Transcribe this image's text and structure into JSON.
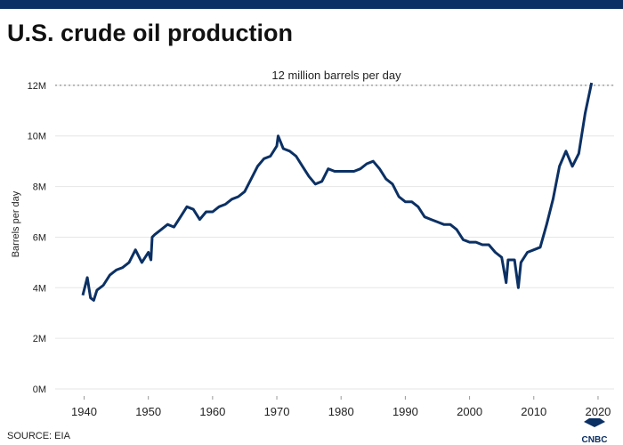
{
  "chart_data": {
    "type": "line",
    "title": "U.S. crude oil production",
    "y_label": "Barrels per day",
    "source": "SOURCE: EIA",
    "logo": "CNBC",
    "reference_line": {
      "value": 12000000,
      "label": "12 million barrels per day"
    },
    "x": [
      1939.8,
      1940.5,
      1941,
      1941.5,
      1942,
      1943,
      1944,
      1945,
      1946,
      1947,
      1948,
      1949,
      1950,
      1950.4,
      1950.6,
      1951,
      1952,
      1953,
      1954,
      1955,
      1956,
      1957,
      1958,
      1959,
      1960,
      1961,
      1962,
      1963,
      1964,
      1965,
      1966,
      1967,
      1968,
      1969,
      1970,
      1970.2,
      1971,
      1972,
      1973,
      1974,
      1975,
      1976,
      1977,
      1978,
      1979,
      1980,
      1981,
      1982,
      1983,
      1984,
      1985,
      1986,
      1987,
      1988,
      1989,
      1990,
      1991,
      1992,
      1993,
      1994,
      1995,
      1996,
      1997,
      1998,
      1999,
      2000,
      2001,
      2002,
      2003,
      2004,
      2005,
      2005.7,
      2006,
      2007,
      2007.6,
      2008,
      2009,
      2010,
      2011,
      2012,
      2013,
      2014,
      2015,
      2016,
      2017,
      2018,
      2018.5,
      2019
    ],
    "series": [
      {
        "name": "U.S. crude oil production",
        "color": "#0b3064",
        "values": [
          3700000,
          4400000,
          3600000,
          3500000,
          3900000,
          4100000,
          4500000,
          4700000,
          4800000,
          5000000,
          5500000,
          5000000,
          5400000,
          5100000,
          6000000,
          6100000,
          6300000,
          6500000,
          6400000,
          6800000,
          7200000,
          7100000,
          6700000,
          7000000,
          7000000,
          7200000,
          7300000,
          7500000,
          7600000,
          7800000,
          8300000,
          8800000,
          9100000,
          9200000,
          9600000,
          10000000,
          9500000,
          9400000,
          9200000,
          8800000,
          8400000,
          8100000,
          8200000,
          8700000,
          8600000,
          8600000,
          8600000,
          8600000,
          8700000,
          8900000,
          9000000,
          8700000,
          8300000,
          8100000,
          7600000,
          7400000,
          7400000,
          7200000,
          6800000,
          6700000,
          6600000,
          6500000,
          6500000,
          6300000,
          5900000,
          5800000,
          5800000,
          5700000,
          5700000,
          5400000,
          5200000,
          4200000,
          5100000,
          5100000,
          4000000,
          5000000,
          5400000,
          5500000,
          5600000,
          6500000,
          7500000,
          8800000,
          9400000,
          8800000,
          9300000,
          10900000,
          11500000,
          12100000
        ]
      }
    ],
    "xlim": [
      1935.5,
      2022.5
    ],
    "xticks": [
      1940,
      1950,
      1960,
      1970,
      1980,
      1990,
      2000,
      2010,
      2020
    ],
    "ylim": [
      0,
      12700000
    ],
    "yticks": [
      {
        "value": 0,
        "label": "0M"
      },
      {
        "value": 2000000,
        "label": "2M"
      },
      {
        "value": 4000000,
        "label": "4M"
      },
      {
        "value": 6000000,
        "label": "6M"
      },
      {
        "value": 8000000,
        "label": "8M"
      },
      {
        "value": 10000000,
        "label": "10M"
      },
      {
        "value": 12000000,
        "label": "12M"
      }
    ],
    "grid": true
  }
}
